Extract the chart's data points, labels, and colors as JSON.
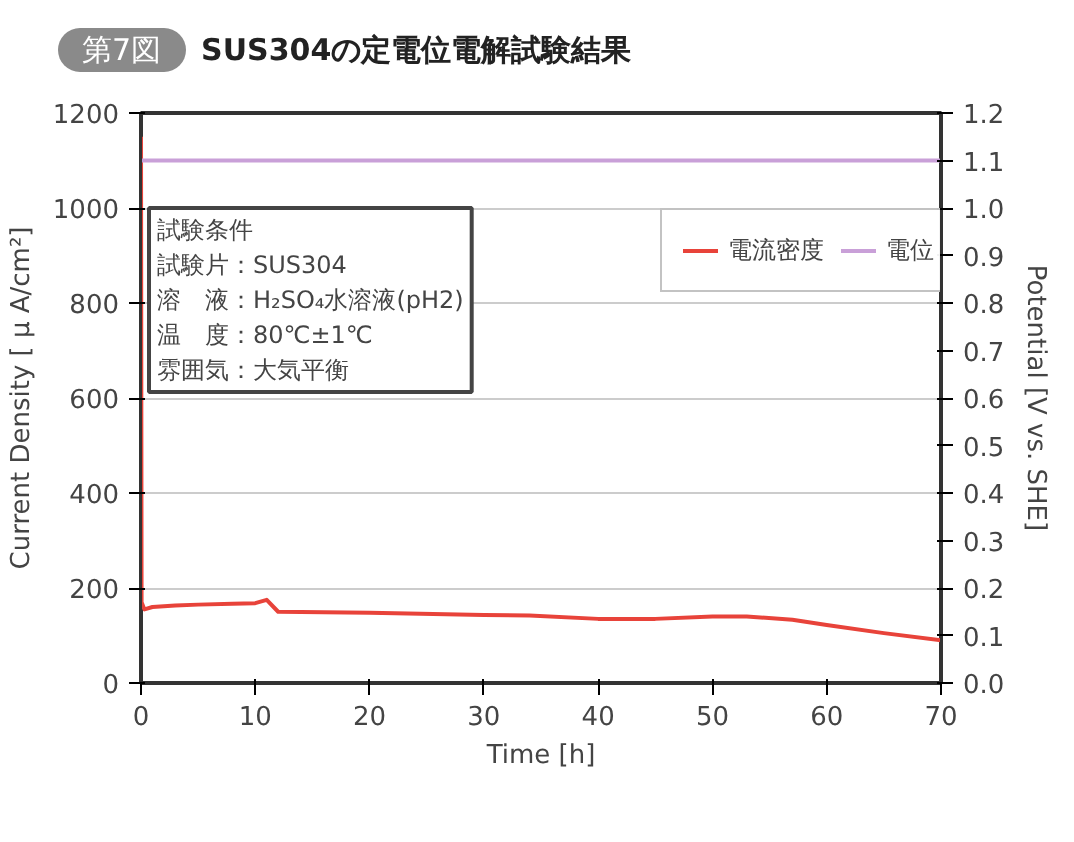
{
  "chart_data": {
    "type": "line",
    "title": "SUS304の定電位電解試験結果",
    "xlabel": "Time [h]",
    "ylabel": "Current Density [ μ A/cm²]",
    "y2label": "Potential [V vs. SHE]",
    "xlim": [
      0,
      70
    ],
    "xticks": [
      0,
      10,
      20,
      30,
      40,
      50,
      60,
      70
    ],
    "ylim": [
      0,
      1200
    ],
    "yticks": [
      0,
      200,
      400,
      600,
      800,
      1000,
      1200
    ],
    "y2lim": [
      0,
      1.2
    ],
    "y2ticks": [
      {
        "value": 0,
        "label": "0.0"
      },
      0.1,
      0.2,
      0.3,
      0.4,
      0.5,
      0.6,
      0.7,
      0.8,
      0.9,
      {
        "value": 1,
        "label": "1.0"
      },
      1.1,
      1.2
    ],
    "grid": "y",
    "legend": "top right",
    "line_style": "solid",
    "series": [
      {
        "name": "電流密度",
        "color": "#e8433a",
        "x": [
          0,
          0.05,
          0.3,
          1,
          3,
          5,
          8,
          10,
          11,
          12,
          20,
          30,
          34,
          40,
          45,
          50,
          53,
          57,
          60,
          65,
          70
        ],
        "values": [
          1150,
          170,
          155,
          160,
          163,
          165,
          167,
          168,
          175,
          150,
          148,
          143,
          142,
          135,
          135,
          140,
          140,
          133,
          122,
          105,
          90
        ]
      },
      {
        "name": "電位",
        "color": "#c9a0d8",
        "axis": "y2",
        "x": [
          0,
          70
        ],
        "values": [
          1.1,
          1.1
        ]
      }
    ],
    "annotations": [
      "第7図",
      "試験条件",
      "試験片：SUS304",
      "溶　液：H₂SO₄水溶液(pH2)",
      "温　度：80℃±1℃",
      "雰囲気：大気平衡"
    ]
  }
}
